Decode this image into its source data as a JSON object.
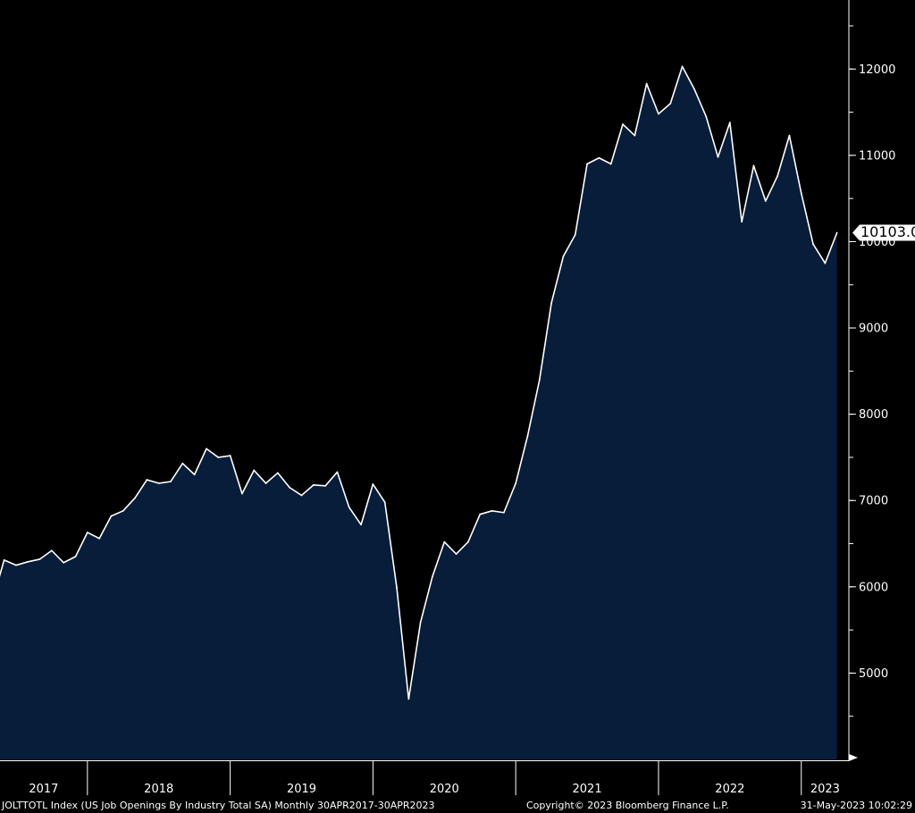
{
  "colors": {
    "background": "#000000",
    "area_fill": "#071d3a",
    "line": "#ffffff",
    "axis": "#ffffff",
    "text": "#ffffff",
    "last_value_box": "#ffffff",
    "last_value_text": "#000000"
  },
  "footer": {
    "description": "JOLTTOTL Index (US Job Openings By Industry Total SA)  Monthly 30APR2017-30APR2023",
    "copyright": "Copyright© 2023 Bloomberg Finance L.P.",
    "timestamp": "31-May-2023 10:02:29"
  },
  "chart_data": {
    "type": "area",
    "title": "",
    "xlabel": "",
    "ylabel": "",
    "ylim": [
      4000,
      12800
    ],
    "xlim": [
      "2017-04",
      "2023-05"
    ],
    "y_ticks": [
      "5000",
      "6000",
      "7000",
      "8000",
      "9000",
      "10000",
      "11000",
      "12000"
    ],
    "y_axis_position": "right",
    "x_year_labels": [
      "2017",
      "2018",
      "2019",
      "2020",
      "2021",
      "2022",
      "2023"
    ],
    "grid": false,
    "last_value_label": "10103.00",
    "series": [
      {
        "x": [
          "2017-04",
          "2017-05",
          "2017-06",
          "2017-07",
          "2017-08",
          "2017-09",
          "2017-10",
          "2017-11",
          "2017-12",
          "2018-01",
          "2018-02",
          "2018-03",
          "2018-04",
          "2018-05",
          "2018-06",
          "2018-07",
          "2018-08",
          "2018-09",
          "2018-10",
          "2018-11",
          "2018-12",
          "2019-01",
          "2019-02",
          "2019-03",
          "2019-04",
          "2019-05",
          "2019-06",
          "2019-07",
          "2019-08",
          "2019-09",
          "2019-10",
          "2019-11",
          "2019-12",
          "2020-01",
          "2020-02",
          "2020-03",
          "2020-04",
          "2020-05",
          "2020-06",
          "2020-07",
          "2020-08",
          "2020-09",
          "2020-10",
          "2020-11",
          "2020-12",
          "2021-01",
          "2021-02",
          "2021-03",
          "2021-04",
          "2021-05",
          "2021-06",
          "2021-07",
          "2021-08",
          "2021-09",
          "2021-10",
          "2021-11",
          "2021-12",
          "2022-01",
          "2022-02",
          "2022-03",
          "2022-04",
          "2022-05",
          "2022-06",
          "2022-07",
          "2022-08",
          "2022-09",
          "2022-10",
          "2022-11",
          "2022-12",
          "2023-01",
          "2023-02",
          "2023-03",
          "2023-04"
        ],
        "values": [
          6100,
          5830,
          6310,
          6250,
          6290,
          6320,
          6420,
          6280,
          6350,
          6630,
          6560,
          6820,
          6880,
          7030,
          7240,
          7200,
          7220,
          7430,
          7300,
          7600,
          7500,
          7520,
          7080,
          7350,
          7200,
          7320,
          7150,
          7060,
          7180,
          7170,
          7330,
          6920,
          6720,
          7190,
          6980,
          5990,
          4700,
          5590,
          6120,
          6520,
          6380,
          6520,
          6840,
          6880,
          6860,
          7200,
          7750,
          8400,
          9290,
          9830,
          10080,
          10900,
          10970,
          10900,
          11360,
          11230,
          11830,
          11480,
          11600,
          12030,
          11770,
          11450,
          10980,
          11380,
          10230,
          10880,
          10470,
          10760,
          11230,
          10560,
          9970,
          9750,
          10103
        ]
      }
    ]
  }
}
